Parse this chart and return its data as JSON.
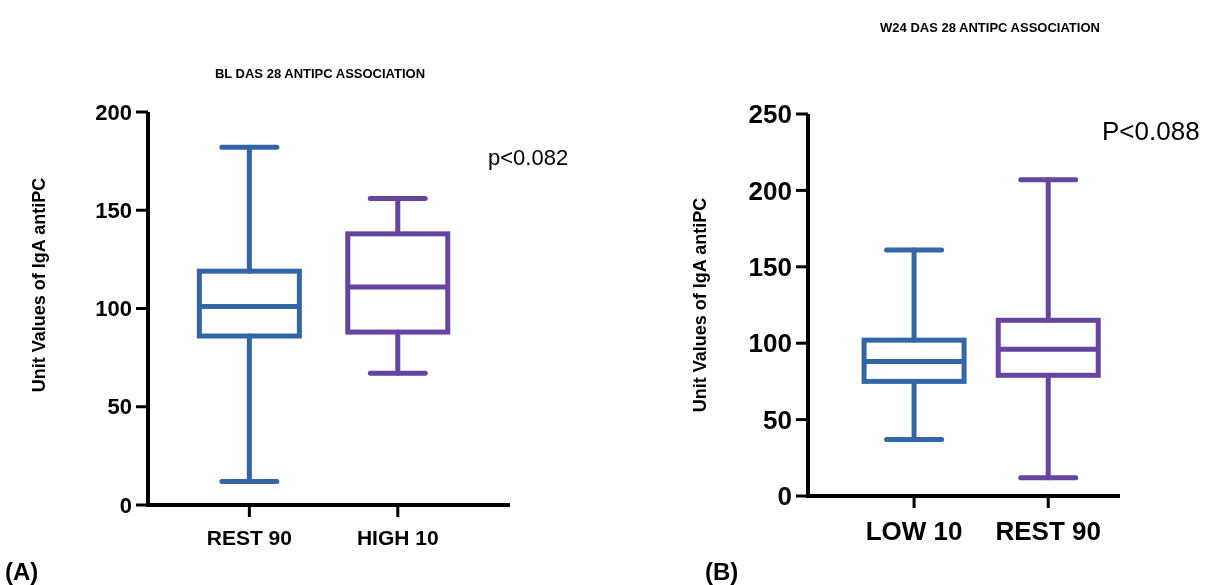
{
  "chart_data": [
    {
      "type": "box",
      "title": "BL DAS 28 ANTIPC ASSOCIATION",
      "ylabel": "Unit Values of  IgA antiPC",
      "categories": [
        "REST 90",
        "HIGH 10"
      ],
      "ylim": [
        0,
        200
      ],
      "yticks": [
        0,
        50,
        100,
        150,
        200
      ],
      "colors": [
        "#3366a6",
        "#6644a0"
      ],
      "boxes": [
        {
          "low": 12,
          "q1": 86,
          "median": 101,
          "q3": 119,
          "high": 182
        },
        {
          "low": 67,
          "q1": 88,
          "median": 111,
          "q3": 138,
          "high": 156
        }
      ],
      "annotations": [
        "p<0.082",
        "(A)"
      ]
    },
    {
      "type": "box",
      "title": "W24 DAS 28 ANTIPC ASSOCIATION",
      "ylabel": "Unit Values of  IgA antiPC",
      "categories": [
        "LOW 10",
        "REST 90"
      ],
      "ylim": [
        0,
        250
      ],
      "yticks": [
        0,
        50,
        100,
        150,
        200,
        250
      ],
      "colors": [
        "#3366a6",
        "#6644a0"
      ],
      "boxes": [
        {
          "low": 37,
          "q1": 75,
          "median": 88,
          "q3": 102,
          "high": 161
        },
        {
          "low": 12,
          "q1": 79,
          "median": 96,
          "q3": 115,
          "high": 207
        }
      ],
      "annotations": [
        "P<0.088",
        "(B)"
      ]
    }
  ]
}
